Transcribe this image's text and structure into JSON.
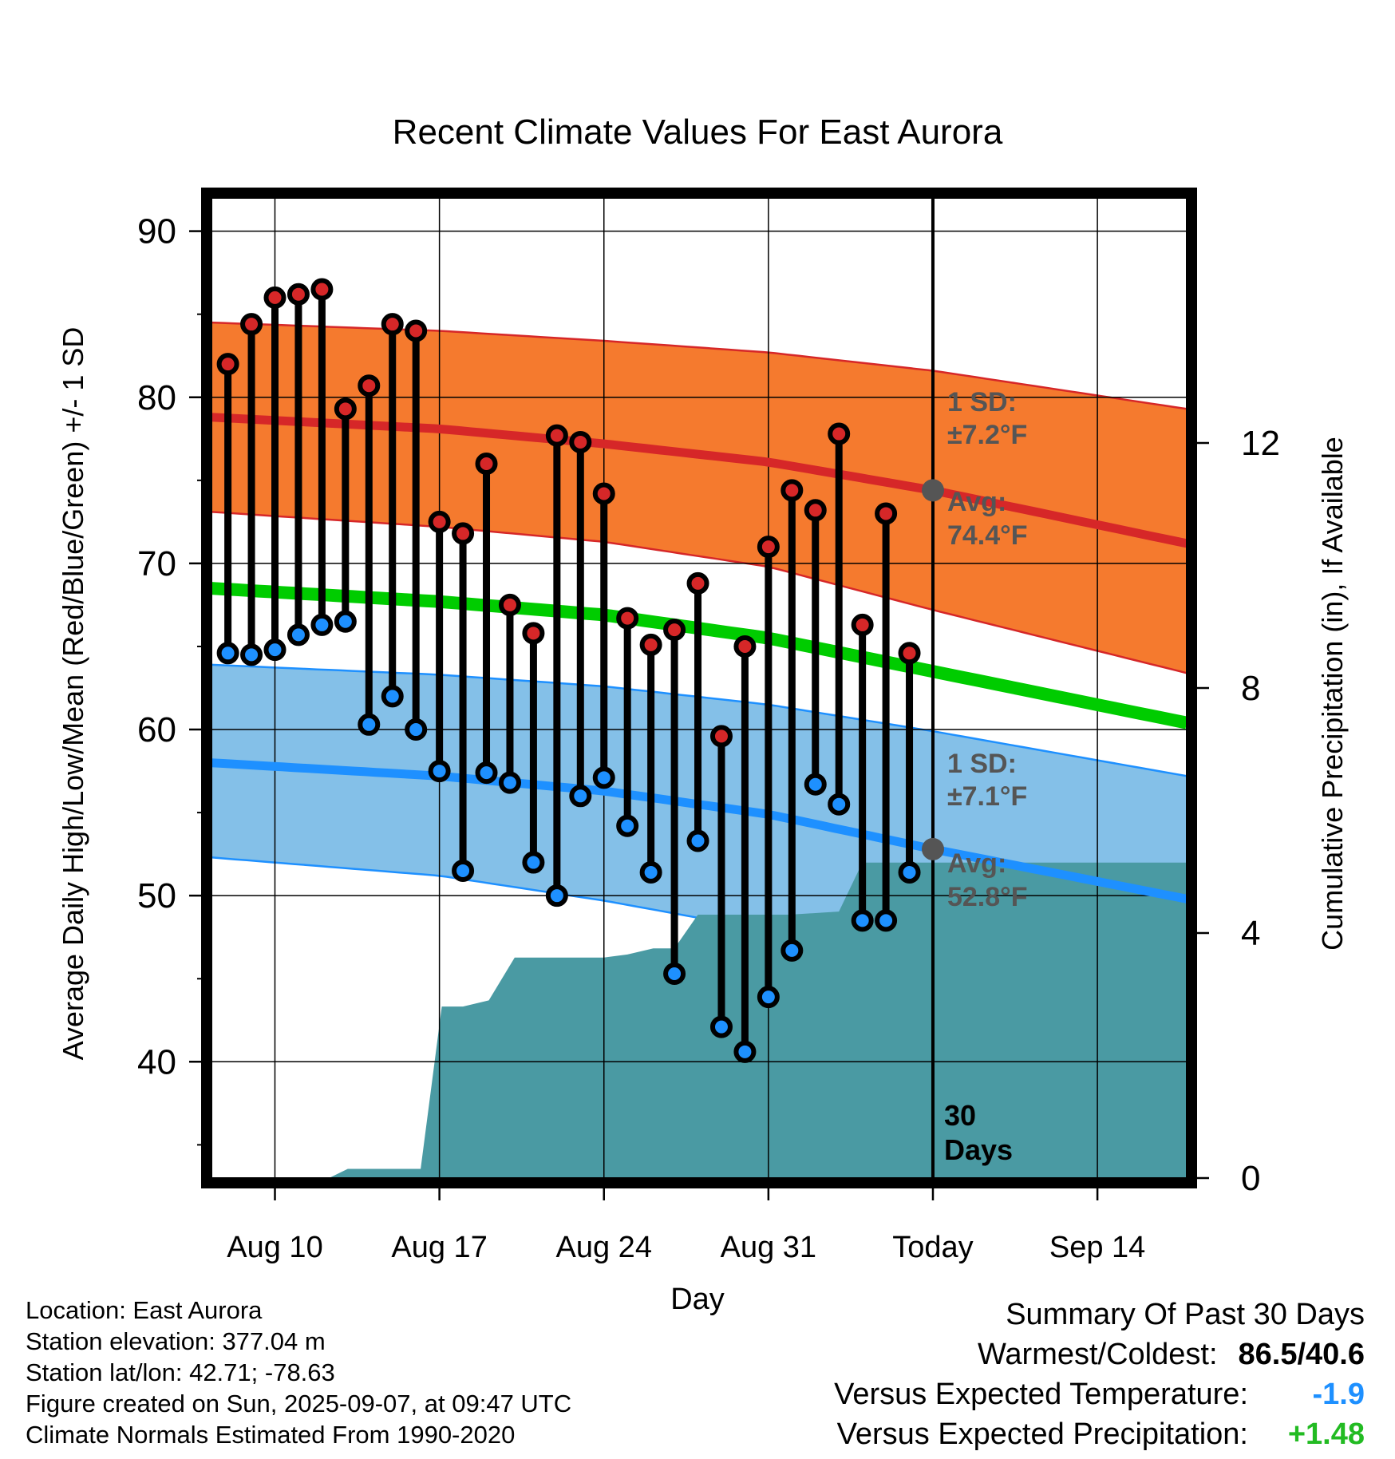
{
  "chart_data": {
    "type": "line",
    "title": "Recent Climate Values For East Aurora",
    "xlabel": "Day",
    "ylabel": "Average Daily High/Low/Mean (Red/Blue/Green) +/- 1 SD",
    "y2label": "Cumulative Precipitation (in), If Available",
    "xlim": [
      0.3,
      41.8
    ],
    "ylim": [
      33,
      92
    ],
    "y2lim": [
      0,
      16
    ],
    "x_ticks": [
      {
        "x": 3,
        "label": "Aug 10"
      },
      {
        "x": 10,
        "label": "Aug 17"
      },
      {
        "x": 17,
        "label": "Aug 24"
      },
      {
        "x": 24,
        "label": "Aug 31"
      },
      {
        "x": 31,
        "label": "Today"
      },
      {
        "x": 38,
        "label": "Sep 14"
      }
    ],
    "y_ticks": [
      40,
      50,
      60,
      70,
      80,
      90
    ],
    "y2_ticks": [
      0,
      4,
      8,
      12
    ],
    "grid": true,
    "days": [
      1,
      2,
      3,
      4,
      5,
      6,
      7,
      8,
      9,
      10,
      11,
      12,
      13,
      14,
      15,
      16,
      17,
      18,
      19,
      20,
      21,
      22,
      23,
      24,
      25,
      26,
      27,
      28,
      29,
      30
    ],
    "daily_high": [
      82.0,
      84.4,
      86.0,
      86.2,
      86.5,
      79.3,
      80.7,
      84.4,
      84.0,
      72.5,
      71.8,
      76.0,
      67.5,
      65.8,
      77.7,
      77.3,
      74.2,
      66.7,
      65.1,
      66.0,
      68.8,
      59.6,
      65.0,
      71.0,
      74.4,
      73.2,
      77.8,
      66.3,
      73.0,
      64.6
    ],
    "daily_low": [
      64.6,
      64.5,
      64.8,
      65.7,
      66.3,
      66.5,
      60.3,
      62.0,
      60.0,
      57.5,
      51.5,
      57.4,
      56.8,
      52.0,
      50.0,
      56.0,
      57.1,
      54.2,
      51.4,
      45.3,
      53.3,
      42.1,
      40.6,
      43.9,
      46.7,
      56.7,
      55.5,
      48.5,
      48.5,
      51.4
    ],
    "normal": {
      "x": [
        0.3,
        10,
        17,
        24,
        31,
        41.8
      ],
      "high_mean": [
        78.8,
        78.1,
        77.2,
        76.1,
        74.4,
        71.2
      ],
      "high_upper": [
        84.5,
        84.0,
        83.4,
        82.7,
        81.6,
        79.3
      ],
      "high_lower": [
        73.1,
        72.2,
        71.3,
        69.8,
        67.2,
        63.4
      ],
      "low_mean": [
        58.0,
        57.2,
        56.3,
        54.9,
        52.8,
        49.8
      ],
      "low_upper": [
        63.9,
        63.3,
        62.6,
        61.5,
        59.9,
        57.2
      ],
      "low_lower": [
        52.3,
        51.2,
        49.7,
        47.9,
        45.8,
        42.1
      ],
      "mean": [
        68.5,
        67.7,
        66.9,
        65.5,
        63.5,
        60.4
      ]
    },
    "precip": {
      "x": [
        5.3,
        6.1,
        9.2,
        10.1,
        11.0,
        12.1,
        13.2,
        17.0,
        18.0,
        19.1,
        20.0,
        21.0,
        24.9,
        27.0,
        28.0,
        41.8
      ],
      "values": [
        0,
        0.15,
        0.15,
        2.8,
        2.8,
        2.9,
        3.6,
        3.6,
        3.65,
        3.75,
        3.75,
        4.3,
        4.3,
        4.35,
        5.15,
        5.15
      ]
    },
    "today_x": 31,
    "series_colors": {
      "high": "#d62728",
      "low": "#1e90ff",
      "mean": "#00cc00",
      "high_band": "#f57a2e",
      "low_band": "#84c0e8",
      "precip": "#4a9aa3",
      "marker_today": "#555555"
    },
    "annotations": {
      "high_sd": [
        "1 SD:",
        "±7.2°F"
      ],
      "high_avg": [
        "Avg:",
        "74.4°F"
      ],
      "low_sd": [
        "1 SD:",
        "±7.1°F"
      ],
      "low_avg": [
        "Avg:",
        "52.8°F"
      ],
      "days": [
        "30",
        "Days"
      ]
    }
  },
  "info": {
    "location": "Location: East Aurora",
    "elevation": "Station elevation: 377.04 m",
    "latlon": "Station lat/lon: 42.71; -78.63",
    "created": "Figure created on Sun, 2025-09-07, at 09:47 UTC",
    "normals": "Climate Normals Estimated From 1990-2020"
  },
  "summary": {
    "title": "Summary Of Past 30 Days",
    "warm_cold_label": "Warmest/Coldest:",
    "warm_cold_value": "86.5/40.6",
    "temp_label": "Versus Expected Temperature:",
    "temp_value": "-1.9",
    "temp_color": "#1e90ff",
    "precip_label": "Versus Expected Precipitation:",
    "precip_value": "+1.48",
    "precip_color": "#22bb22"
  }
}
